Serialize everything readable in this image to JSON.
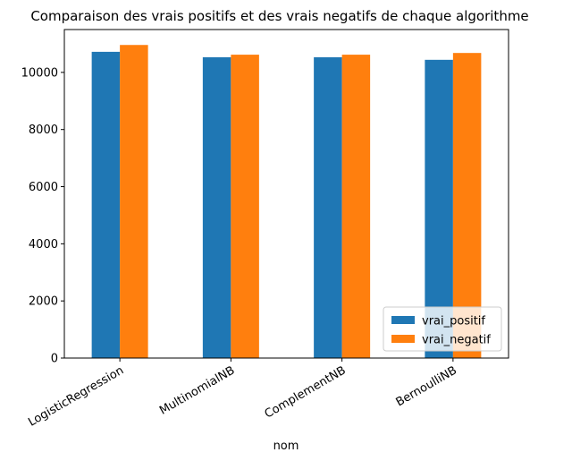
{
  "chart_data": {
    "type": "bar",
    "title": "Comparaison des vrais positifs et des vrais negatifs de chaque algorithme",
    "xlabel": "nom",
    "ylabel": "",
    "categories": [
      "LogisticRegression",
      "MultinomialNB",
      "ComplementNB",
      "BernoulliNB"
    ],
    "series": [
      {
        "name": "vrai_positif",
        "color": "#1f77b4",
        "values": [
          10720,
          10530,
          10530,
          10440
        ]
      },
      {
        "name": "vrai_negatif",
        "color": "#ff7f0e",
        "values": [
          10960,
          10620,
          10620,
          10680
        ]
      }
    ],
    "ylim": [
      0,
      11500
    ],
    "yticks": [
      0,
      2000,
      4000,
      6000,
      8000,
      10000
    ],
    "grid": false,
    "legend_position": "lower-right"
  }
}
